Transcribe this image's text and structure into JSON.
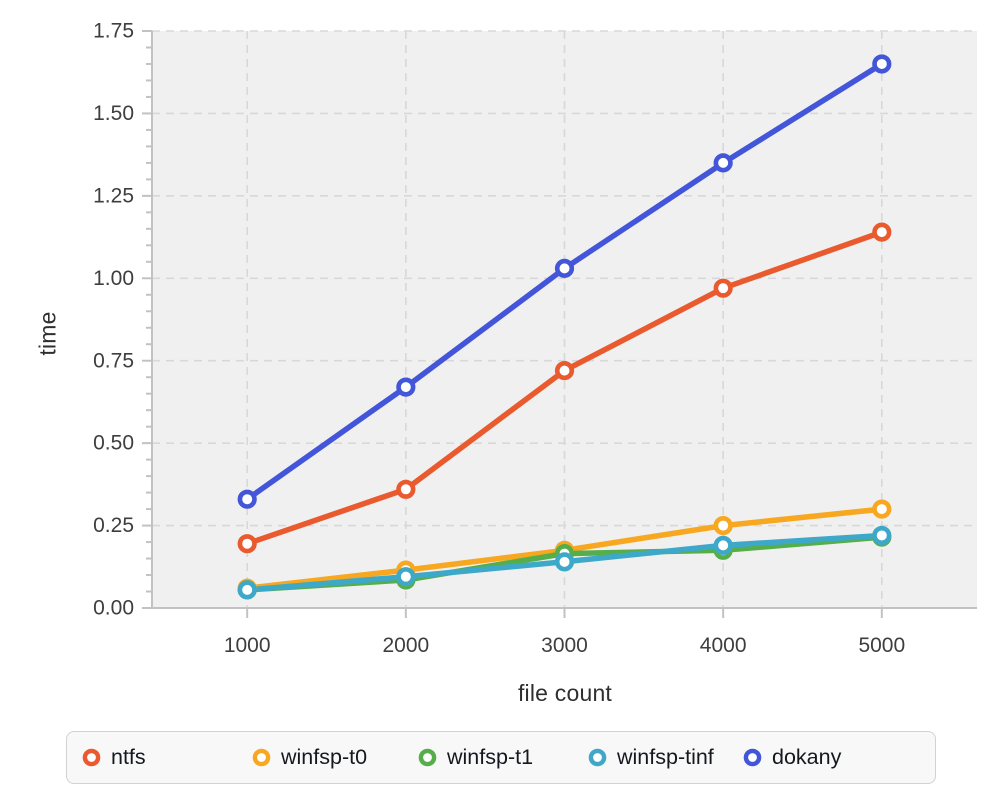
{
  "chart_data": {
    "type": "line",
    "title": "",
    "xlabel": "file count",
    "ylabel": "time",
    "x": [
      1000,
      2000,
      3000,
      4000,
      5000
    ],
    "series": [
      {
        "name": "ntfs",
        "color": "#e95a2e",
        "values": [
          0.195,
          0.36,
          0.72,
          0.97,
          1.14
        ]
      },
      {
        "name": "winfsp-t0",
        "color": "#f7a820",
        "values": [
          0.06,
          0.115,
          0.175,
          0.25,
          0.3
        ]
      },
      {
        "name": "winfsp-t1",
        "color": "#56ae4b",
        "values": [
          0.055,
          0.085,
          0.165,
          0.175,
          0.215
        ]
      },
      {
        "name": "winfsp-tinf",
        "color": "#3ea8c8",
        "values": [
          0.055,
          0.095,
          0.14,
          0.19,
          0.22
        ]
      },
      {
        "name": "dokany",
        "color": "#4355d9",
        "values": [
          0.33,
          0.67,
          1.03,
          1.35,
          1.65
        ]
      }
    ],
    "xlim": [
      400,
      5600
    ],
    "ylim": [
      0,
      1.75
    ],
    "xticks": [
      1000,
      2000,
      3000,
      4000,
      5000
    ],
    "yticks": [
      0.0,
      0.25,
      0.5,
      0.75,
      1.0,
      1.25,
      1.5,
      1.75
    ],
    "y_minor_step": 0.05,
    "grid": true,
    "grid_style": "dashed",
    "legend_position": "bottom",
    "marker": "open-circle",
    "plot_bg": "#f0f0f1",
    "grid_color": "#d8d8da",
    "axis_color": "#c2c2c4",
    "tick_label_color": "#3e3e40"
  }
}
